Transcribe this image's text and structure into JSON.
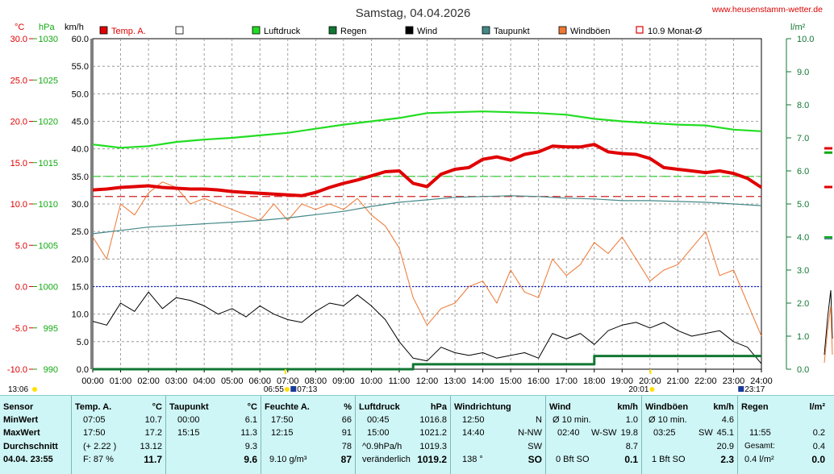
{
  "header": {
    "title": "Samstag, 04.04.2026",
    "site": "www.heusenstamm-wetter.de"
  },
  "units": {
    "celsius": "°C",
    "hpa": "hPa",
    "kmh": "km/h",
    "lm2": "l/m²"
  },
  "legend": [
    {
      "label": "Temp. A.",
      "color": "#e00000"
    },
    {
      "label": "",
      "color": "#ffffff"
    },
    {
      "label": "Luftdruck",
      "color": "#22dd22"
    },
    {
      "label": "Regen",
      "color": "#117733"
    },
    {
      "label": "Wind",
      "color": "#000000"
    },
    {
      "label": "Taupunkt",
      "color": "#448888"
    },
    {
      "label": "Windböen",
      "color": "#ee7733"
    },
    {
      "label": "10.9 Monat-Ø",
      "color": "#e00000"
    }
  ],
  "chart_data": {
    "type": "line",
    "x_ticks": [
      "00:00",
      "01:00",
      "02:00",
      "03:00",
      "04:00",
      "05:00",
      "06:00",
      "07:00",
      "08:00",
      "09:00",
      "10:00",
      "11:00",
      "12:00",
      "13:00",
      "14:00",
      "15:00",
      "16:00",
      "17:00",
      "18:00",
      "19:00",
      "20:00",
      "21:00",
      "22:00",
      "23:00",
      "24:00"
    ],
    "y_ticks_celsius": [
      "30.0",
      "25.0",
      "20.0",
      "15.0",
      "10.0",
      "5.0",
      "0.0",
      "-5.0",
      "-10.0"
    ],
    "y_ticks_hpa": [
      "1030",
      "1025",
      "1020",
      "1015",
      "1010",
      "1005",
      "1000",
      "995",
      "990"
    ],
    "y_ticks_kmh": [
      "60.0",
      "55.0",
      "50.0",
      "45.0",
      "40.0",
      "35.0",
      "30.0",
      "25.0",
      "20.0",
      "15.0",
      "10.0",
      "5.0",
      "0.0"
    ],
    "y_ticks_rain": [
      "10.0",
      "9.0",
      "8.0",
      "7.0",
      "6.0",
      "5.0",
      "4.0",
      "3.0",
      "2.0",
      "1.0",
      "0.0"
    ],
    "ylim_celsius": [
      -10,
      30
    ],
    "ylim_hpa": [
      990,
      1030
    ],
    "ylim_kmh": [
      0,
      60
    ],
    "ylim_rain": [
      0,
      10
    ],
    "reference_lines": {
      "monthly_avg_temp": 10.9,
      "ref_speed_green": 35,
      "zero_celsius": 0
    },
    "events": {
      "sunrise": "06:55",
      "moonrise": "07:13",
      "sunset": "20:01",
      "moonset": "23:17",
      "left_marker": "13:06"
    },
    "series": [
      {
        "name": "Temp. A.",
        "axis": "celsius",
        "x": [
          0,
          0.5,
          1,
          1.5,
          2,
          2.5,
          3,
          3.5,
          4,
          4.5,
          5,
          5.5,
          6,
          6.5,
          7,
          7.5,
          8,
          8.5,
          9,
          9.5,
          10,
          10.5,
          11,
          11.5,
          12,
          12.5,
          13,
          13.5,
          14,
          14.5,
          15,
          15.5,
          16,
          16.5,
          17,
          17.5,
          18,
          18.5,
          19,
          19.5,
          20,
          20.5,
          21,
          21.5,
          22,
          22.5,
          23,
          23.5,
          24
        ],
        "y": [
          11.7,
          11.8,
          12.0,
          12.1,
          12.2,
          12.0,
          11.9,
          11.8,
          11.8,
          11.7,
          11.5,
          11.4,
          11.3,
          11.2,
          11.1,
          11.0,
          11.4,
          12.0,
          12.5,
          12.9,
          13.4,
          13.9,
          14.0,
          12.5,
          12.1,
          13.6,
          14.2,
          14.4,
          15.4,
          15.7,
          15.3,
          16.0,
          16.3,
          17.0,
          16.9,
          16.9,
          17.2,
          16.3,
          16.1,
          16.0,
          15.5,
          14.4,
          14.2,
          14.0,
          13.8,
          14.0,
          13.7,
          13.1,
          12.0
        ]
      },
      {
        "name": "Luftdruck",
        "axis": "hpa",
        "x": [
          0,
          1,
          2,
          3,
          4,
          5,
          6,
          7,
          8,
          9,
          10,
          11,
          12,
          13,
          14,
          15,
          16,
          17,
          18,
          19,
          20,
          21,
          22,
          23,
          24
        ],
        "y": [
          1017.2,
          1016.8,
          1017.0,
          1017.5,
          1017.8,
          1018.0,
          1018.3,
          1018.6,
          1019.1,
          1019.6,
          1020.0,
          1020.4,
          1021.0,
          1021.1,
          1021.2,
          1021.1,
          1021.0,
          1020.8,
          1020.3,
          1020.0,
          1019.8,
          1019.6,
          1019.5,
          1019.0,
          1018.8
        ]
      },
      {
        "name": "Taupunkt",
        "axis": "celsius",
        "x": [
          0,
          1,
          2,
          3,
          4,
          5,
          6,
          7,
          8,
          9,
          10,
          11,
          12,
          13,
          14,
          15,
          16,
          17,
          18,
          19,
          20,
          21,
          22,
          23,
          24
        ],
        "y": [
          6.4,
          6.8,
          7.2,
          7.4,
          7.6,
          7.8,
          8.0,
          8.3,
          8.7,
          9.1,
          9.7,
          10.2,
          10.5,
          10.8,
          10.9,
          11.0,
          10.9,
          10.7,
          10.6,
          10.4,
          10.4,
          10.3,
          10.2,
          10.0,
          9.8
        ]
      },
      {
        "name": "Regen",
        "axis": "rain",
        "x": [
          0,
          11.5,
          11.5,
          18.0,
          18.0,
          24
        ],
        "y": [
          0,
          0,
          0.15,
          0.15,
          0.4,
          0.4
        ]
      },
      {
        "name": "Wind",
        "axis": "kmh",
        "x": [
          0,
          0.5,
          1,
          1.5,
          2,
          2.5,
          3,
          3.5,
          4,
          4.5,
          5,
          5.5,
          6,
          6.5,
          7,
          7.5,
          8,
          8.5,
          9,
          9.5,
          10,
          10.5,
          11,
          11.5,
          12,
          12.5,
          13,
          13.5,
          14,
          14.5,
          15,
          15.5,
          16,
          16.5,
          17,
          17.5,
          18,
          18.5,
          19,
          19.5,
          20,
          20.5,
          21,
          21.5,
          22,
          22.5,
          23,
          23.5,
          24
        ],
        "y": [
          8.7,
          8.0,
          12.0,
          10.5,
          14.0,
          11.0,
          13.0,
          12.5,
          11.5,
          10.0,
          11.0,
          9.5,
          11.5,
          10.0,
          9.0,
          8.5,
          10.5,
          12.0,
          11.5,
          13.5,
          11.5,
          9.0,
          5.0,
          2.0,
          1.5,
          4.0,
          3.0,
          2.5,
          3.0,
          2.0,
          2.5,
          3.0,
          2.0,
          6.5,
          5.5,
          6.5,
          4.5,
          7.0,
          8.0,
          8.5,
          7.5,
          8.5,
          7.0,
          6.0,
          6.5,
          7.0,
          5.0,
          4.0,
          1.0
        ]
      },
      {
        "name": "Windböen",
        "axis": "kmh",
        "x": [
          0,
          0.5,
          1,
          1.5,
          2,
          2.5,
          3,
          3.5,
          4,
          4.5,
          5,
          5.5,
          6,
          6.5,
          7,
          7.5,
          8,
          8.5,
          9,
          9.5,
          10,
          10.5,
          11,
          11.5,
          12,
          12.5,
          13,
          13.5,
          14,
          14.5,
          15,
          15.5,
          16,
          16.5,
          17,
          17.5,
          18,
          18.5,
          19,
          19.5,
          20,
          20.5,
          21,
          21.5,
          22,
          22.5,
          23,
          23.5,
          24
        ],
        "y": [
          24,
          20,
          30,
          28,
          32,
          34,
          33,
          30,
          31,
          30,
          29,
          28,
          27,
          30,
          27,
          30,
          29,
          30,
          29,
          31,
          28,
          26,
          22,
          13,
          8,
          11,
          12,
          15,
          16,
          12,
          18,
          14,
          13,
          20,
          17,
          19,
          23,
          21,
          24,
          20,
          16,
          18,
          19,
          22,
          25,
          17,
          18,
          12,
          6
        ]
      }
    ]
  },
  "table": {
    "sensor": {
      "title": "Sensor",
      "r1": "MinWert",
      "r2": "MaxWert",
      "r3": "Durchschnitt",
      "r4": "04.04. 23:55"
    },
    "temp": {
      "title": "Temp. A.",
      "unit": "°C",
      "r1t": "07:05",
      "r1v": "10.7",
      "r2t": "17:50",
      "r2v": "17.2",
      "r3t": "(+ 2.22 )",
      "r3v": "13.12",
      "r4t": "F: 87 %",
      "r4v": "11.7"
    },
    "dew": {
      "title": "Taupunkt",
      "unit": "°C",
      "r1t": "00:00",
      "r1v": "6.1",
      "r2t": "15:15",
      "r2v": "11.3",
      "r3v": "9.3",
      "r4v": "9.6"
    },
    "hum": {
      "title": "Feuchte A.",
      "unit": "%",
      "r1t": "17:50",
      "r1v": "66",
      "r2t": "12:15",
      "r2v": "91",
      "r3v": "78",
      "r4t": "9.10 g/m³",
      "r4v": "87"
    },
    "press": {
      "title": "Luftdruck",
      "unit": "hPa",
      "r1t": "00:45",
      "r1v": "1016.8",
      "r2t": "15:00",
      "r2v": "1021.2",
      "r3t": "^0.9hPa/h",
      "r3v": "1019.3",
      "r4t": "veränderlich",
      "r4v": "1019.2"
    },
    "winddir": {
      "title": "Windrichtung",
      "r1t": "12:50",
      "r1v": "N",
      "r2t": "14:40",
      "r2v": "N-NW",
      "r3v": "SW",
      "r4t": "138 °",
      "r4v": "SO"
    },
    "wind": {
      "title": "Wind",
      "unit": "km/h",
      "r1t": "Ø 10 min.",
      "r1v": "1.0",
      "r2t": "02:40",
      "r2m": "W-SW",
      "r2v": "19.8",
      "r3v": "8.7",
      "r4t": "0 Bft SO",
      "r4v": "0.1"
    },
    "gust": {
      "title": "Windböen",
      "unit": "km/h",
      "r1t": "Ø 10 min.",
      "r1v": "4.6",
      "r2t": "03:25",
      "r2m": "SW",
      "r2v": "45.1",
      "r3v": "20.9",
      "r4t": "1 Bft SO",
      "r4v": "2.3"
    },
    "rain": {
      "title": "Regen",
      "unit": "l/m²",
      "r2t": "11:55",
      "r2v": "0.2",
      "r3t": "Gesamt:",
      "r3v": "0.4",
      "r4t": "0.4 l/m²",
      "r4v": "0.0"
    }
  }
}
